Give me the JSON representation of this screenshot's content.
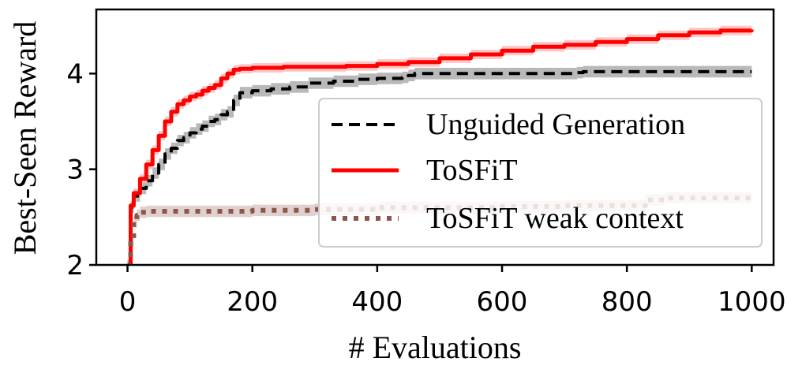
{
  "chart_data": {
    "type": "line",
    "title": "",
    "xlabel": "# Evaluations",
    "ylabel": "Best-Seen Reward",
    "xlim": [
      -50,
      1035
    ],
    "ylim": [
      2.0,
      4.67
    ],
    "xticks": [
      0,
      200,
      400,
      600,
      800,
      1000
    ],
    "xtick_labels": [
      "0",
      "200",
      "400",
      "600",
      "800",
      "1000"
    ],
    "yticks": [
      2,
      3,
      4
    ],
    "ytick_labels": [
      "2",
      "3",
      "4"
    ],
    "grid": false,
    "legend_position": "center-right",
    "series": [
      {
        "name": "Unguided Generation",
        "color": "#000000",
        "band_color": "#808080",
        "style": "dashed",
        "x": [
          0,
          5,
          10,
          20,
          30,
          40,
          50,
          60,
          70,
          80,
          90,
          100,
          110,
          120,
          130,
          140,
          150,
          160,
          170,
          180,
          200,
          230,
          260,
          290,
          330,
          370,
          400,
          440,
          450,
          460,
          500,
          600,
          700,
          720,
          730,
          800,
          900,
          1000
        ],
        "y": [
          2.0,
          2.6,
          2.72,
          2.8,
          2.88,
          2.96,
          3.05,
          3.16,
          3.22,
          3.3,
          3.33,
          3.38,
          3.42,
          3.45,
          3.5,
          3.52,
          3.57,
          3.6,
          3.72,
          3.8,
          3.82,
          3.84,
          3.86,
          3.9,
          3.92,
          3.94,
          3.95,
          3.96,
          3.98,
          4.0,
          4.0,
          4.0,
          4.0,
          4.01,
          4.02,
          4.02,
          4.02,
          4.02
        ],
        "band": 0.06
      },
      {
        "name": "ToSFiT",
        "color": "#ff0000",
        "band_color": "#ff9999",
        "style": "solid",
        "x": [
          0,
          5,
          10,
          20,
          30,
          40,
          50,
          60,
          70,
          80,
          90,
          100,
          110,
          120,
          130,
          140,
          150,
          160,
          170,
          180,
          200,
          250,
          300,
          350,
          400,
          450,
          500,
          550,
          600,
          650,
          700,
          750,
          800,
          850,
          900,
          950,
          1000
        ],
        "y": [
          2.0,
          2.62,
          2.75,
          2.9,
          3.05,
          3.2,
          3.35,
          3.5,
          3.6,
          3.68,
          3.72,
          3.76,
          3.78,
          3.82,
          3.85,
          3.88,
          3.95,
          4.0,
          4.04,
          4.05,
          4.06,
          4.07,
          4.07,
          4.08,
          4.1,
          4.12,
          4.16,
          4.2,
          4.24,
          4.28,
          4.3,
          4.33,
          4.36,
          4.4,
          4.43,
          4.45,
          4.46
        ],
        "band": 0.05
      },
      {
        "name": "ToSFiT weak context",
        "color": "#8c564b",
        "band_color": "#c6aaa5",
        "style": "dotted",
        "x": [
          0,
          5,
          10,
          15,
          20,
          30,
          100,
          200,
          300,
          400,
          500,
          600,
          700,
          800,
          830,
          860,
          900,
          1000
        ],
        "y": [
          2.0,
          2.25,
          2.45,
          2.52,
          2.55,
          2.56,
          2.56,
          2.57,
          2.58,
          2.6,
          2.6,
          2.61,
          2.62,
          2.62,
          2.68,
          2.7,
          2.7,
          2.71
        ],
        "band": 0.06
      }
    ]
  }
}
